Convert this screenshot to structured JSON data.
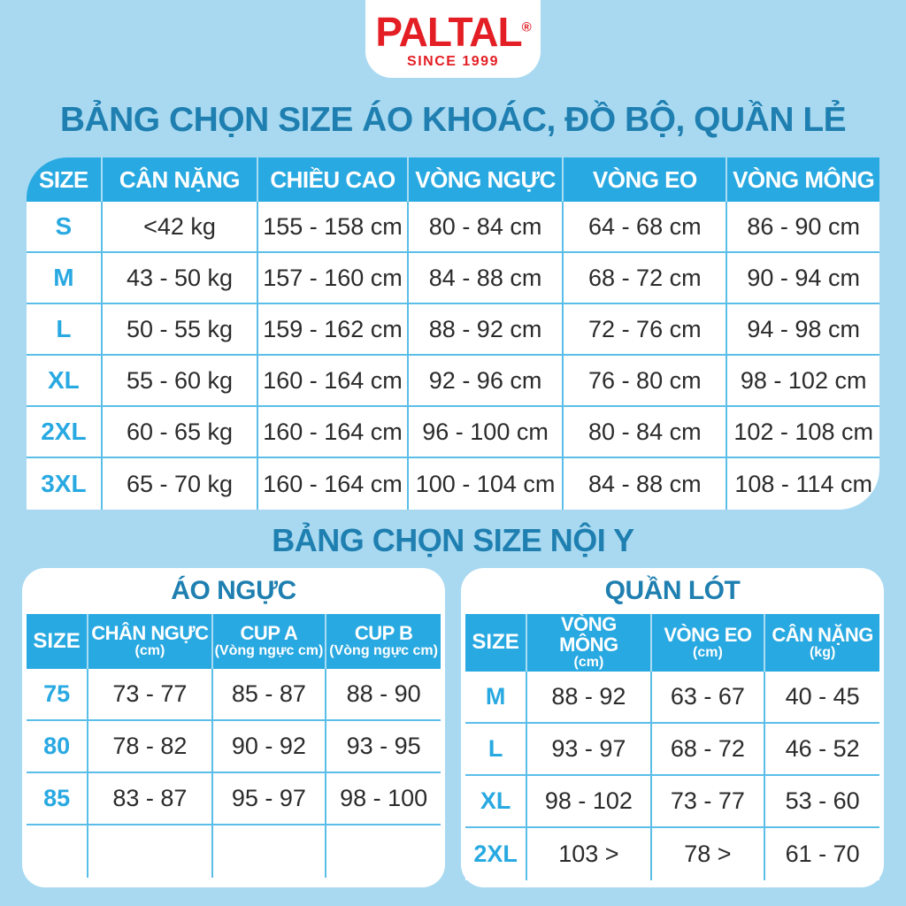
{
  "colors": {
    "background": "#A8D9F1",
    "accent": "#29A9E1",
    "title": "#1E7FB0",
    "red": "#E31E24",
    "border": "#5BBEE8",
    "text": "#2B2B2B"
  },
  "logo": {
    "brand": "PALTAL",
    "registered": "®",
    "tagline": "SINCE 1999"
  },
  "titles": {
    "main": "BẢNG CHỌN SIZE ÁO KHOÁC, ĐỒ BỘ, QUẦN LẺ",
    "secondary": "BẢNG CHỌN SIZE NỘI Y"
  },
  "main_table": {
    "headers": [
      "SIZE",
      "CÂN NẶNG",
      "CHIỀU CAO",
      "VÒNG NGỰC",
      "VÒNG EO",
      "VÒNG MÔNG"
    ],
    "rows": [
      [
        "S",
        "<42 kg",
        "155 - 158 cm",
        "80 - 84 cm",
        "64 - 68 cm",
        "86 - 90 cm"
      ],
      [
        "M",
        "43 - 50 kg",
        "157 - 160 cm",
        "84 - 88 cm",
        "68 - 72 cm",
        "90 - 94 cm"
      ],
      [
        "L",
        "50 - 55 kg",
        "159 - 162 cm",
        "88 - 92 cm",
        "72 - 76 cm",
        "94 - 98 cm"
      ],
      [
        "XL",
        "55 - 60 kg",
        "160 - 164 cm",
        "92 - 96 cm",
        "76 - 80 cm",
        "98 - 102 cm"
      ],
      [
        "2XL",
        "60 - 65 kg",
        "160 - 164 cm",
        "96 - 100 cm",
        "80 - 84 cm",
        "102 - 108 cm"
      ],
      [
        "3XL",
        "65 - 70 kg",
        "160 - 164 cm",
        "100 - 104 cm",
        "84 - 88 cm",
        "108 - 114 cm"
      ]
    ]
  },
  "bra_table": {
    "title": "ÁO NGỰC",
    "headers": [
      "SIZE",
      {
        "label": "CHÂN NGỰC",
        "sub": "(cm)"
      },
      {
        "label": "CUP A",
        "sub": "(Vòng ngực cm)"
      },
      {
        "label": "CUP B",
        "sub": "(Vòng ngực cm)"
      }
    ],
    "rows": [
      [
        "75",
        "73 - 77",
        "85 - 87",
        "88 - 90"
      ],
      [
        "80",
        "78 - 82",
        "90 - 92",
        "93 - 95"
      ],
      [
        "85",
        "83 - 87",
        "95 - 97",
        "98 - 100"
      ],
      [
        "",
        "",
        "",
        ""
      ]
    ]
  },
  "underwear_table": {
    "title": "QUẦN LÓT",
    "headers": [
      "SIZE",
      {
        "label": "VÒNG MÔNG",
        "sub": "(cm)"
      },
      {
        "label": "VÒNG EO",
        "sub": "(cm)"
      },
      {
        "label": "CÂN NẶNG",
        "sub": "(kg)"
      }
    ],
    "rows": [
      [
        "M",
        "88 - 92",
        "63 - 67",
        "40 - 45"
      ],
      [
        "L",
        "93 - 97",
        "68 - 72",
        "46 - 52"
      ],
      [
        "XL",
        "98 - 102",
        "73 - 77",
        "53 - 60"
      ],
      [
        "2XL",
        "103 >",
        "78 >",
        "61 - 70"
      ]
    ]
  }
}
